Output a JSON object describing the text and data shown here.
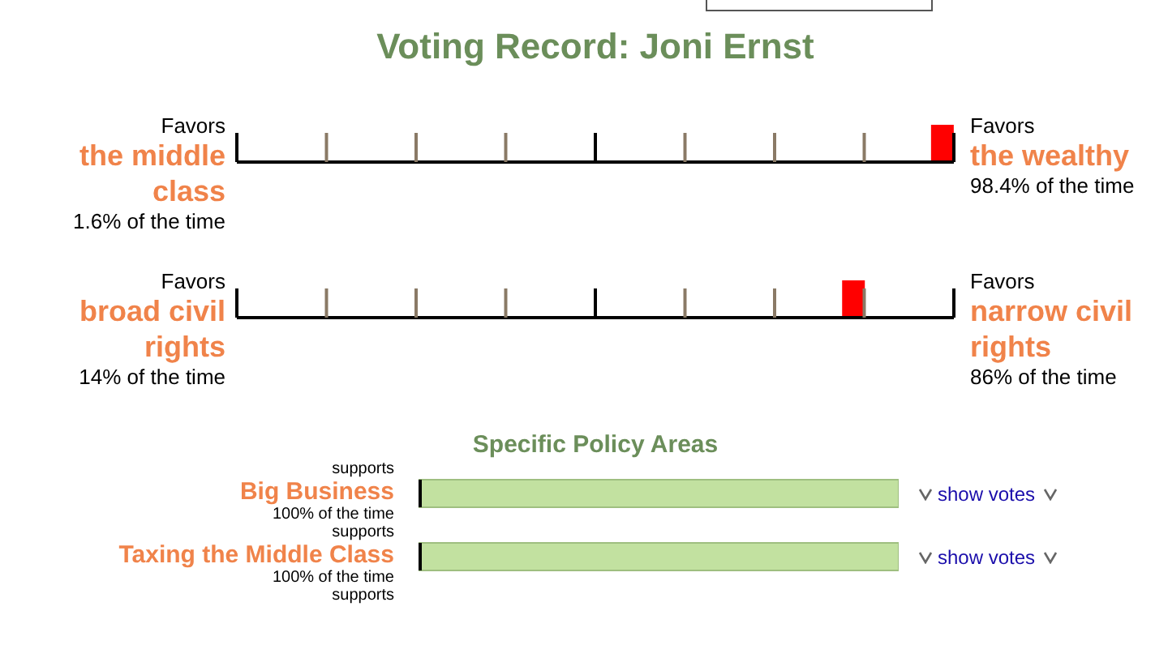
{
  "chart_data": [
    {
      "type": "other",
      "title": "Voting Record: Joni Ernst",
      "values": [
        98.4
      ],
      "value_labels": [
        "98.4% of the time"
      ],
      "color": "#ff0000",
      "annotations": [
        "Favors",
        "the middle class",
        "1.6% of the time",
        "Favors",
        "the wealthy"
      ]
    },
    {
      "type": "other",
      "values": [
        86
      ],
      "value_labels": [
        "86% of the time"
      ],
      "color": "#ff0000",
      "annotations": [
        "Favors",
        "broad civil rights",
        "14% of the time",
        "Favors",
        "narrow civil rights"
      ]
    },
    {
      "type": "bar",
      "title": "Specific Policy Areas",
      "orientation": "horizontal",
      "categories": [
        "Big Business",
        "Taxing the Middle Class"
      ],
      "values": [
        100,
        100
      ],
      "color": "#c2e1a0",
      "value_labels": [
        "100% of the time",
        "100% of the time"
      ],
      "annotations": [
        "supports",
        "supports",
        "supports",
        "show votes",
        "show votes"
      ]
    }
  ]
}
